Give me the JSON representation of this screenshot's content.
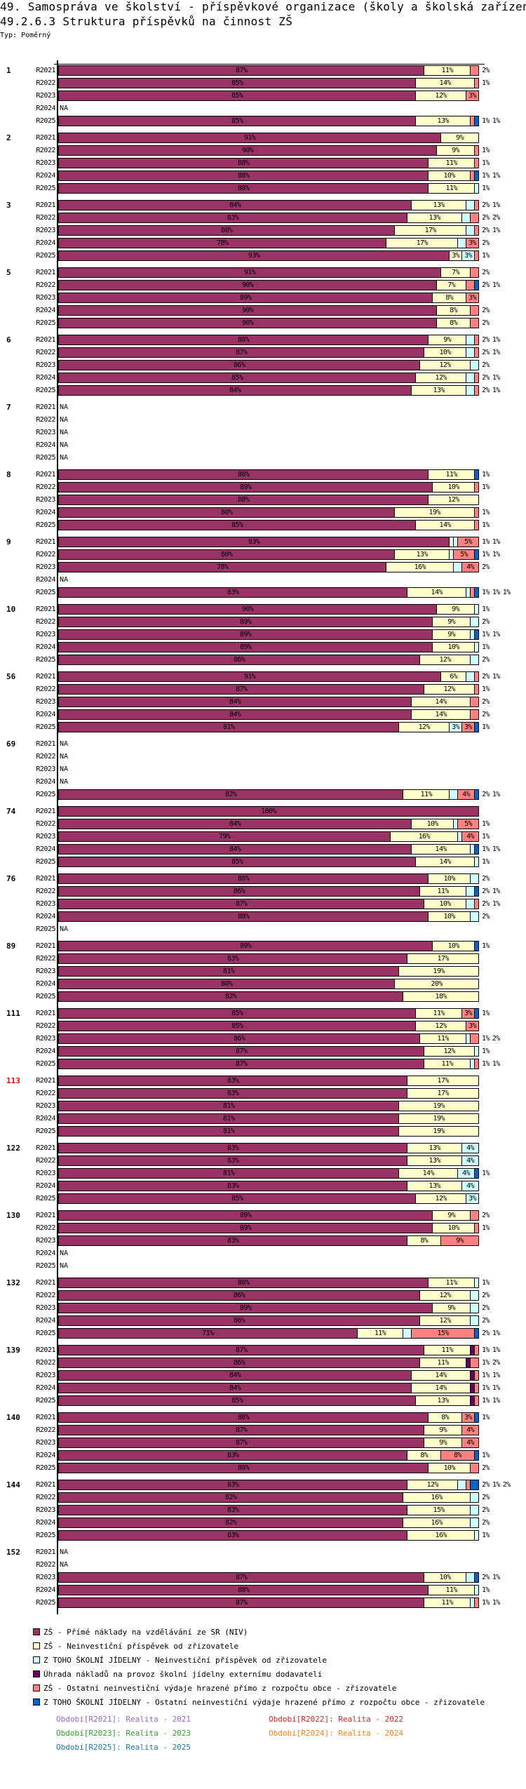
{
  "header": {
    "title": "49. Samospráva ve školství - příspěvkové organizace (školy a školská zařízení)",
    "subtitle": "49.2.6.3 Struktura příspěvků na činnost ZŠ",
    "type_label": "Typ: Poměrný"
  },
  "chart_data": {
    "type": "bar",
    "orientation": "horizontal",
    "stacked": "percent",
    "title": "49.2.6.3 Struktura příspěvků na činnost ZŠ",
    "periods": [
      "R2021",
      "R2022",
      "R2023",
      "R2024",
      "R2025"
    ],
    "na_label": "NA",
    "series": [
      {
        "name": "ZŠ - Přímé náklady na vzdělávání ze SR (NIV)",
        "color": "#993366"
      },
      {
        "name": "ZŠ - Neinvestiční příspěvek od zřizovatele",
        "color": "#ffffcc"
      },
      {
        "name": "Z TOHO ŠKOLNÍ JÍDELNY - Neinvestiční příspěvek od zřizovatele",
        "color": "#ccffff"
      },
      {
        "name": "Úhrada nákladů na provoz školní jídelny externímu dodavateli",
        "color": "#660066"
      },
      {
        "name": "ZŠ - Ostatní neinvestiční výdaje hrazené přímo z rozpočtu obce - zřizovatele",
        "color": "#ff8080"
      },
      {
        "name": "Z TOHO ŠKOLNÍ JÍDELNY - Ostatní neinvestiční výdaje hrazené přímo z rozpočtu obce - zřizovatele",
        "color": "#0066cc"
      }
    ],
    "groups": [
      {
        "label": "1",
        "rows": [
          [
            87,
            11,
            0,
            0,
            2,
            0
          ],
          [
            85,
            14,
            0,
            0,
            1,
            0
          ],
          [
            85,
            12,
            0,
            0,
            3,
            0
          ],
          null,
          [
            85,
            13,
            0,
            0,
            1,
            1
          ]
        ]
      },
      {
        "label": "2",
        "rows": [
          [
            91,
            9,
            0,
            0,
            0,
            0
          ],
          [
            90,
            9,
            0,
            0,
            1,
            0
          ],
          [
            88,
            11,
            0,
            0,
            1,
            0
          ],
          [
            88,
            10,
            0,
            0,
            1,
            1
          ],
          [
            88,
            11,
            1,
            0,
            0,
            0
          ]
        ]
      },
      {
        "label": "3",
        "rows": [
          [
            84,
            13,
            2,
            0,
            1,
            0
          ],
          [
            83,
            13,
            2,
            0,
            2,
            0
          ],
          [
            80,
            17,
            2,
            0,
            1,
            0
          ],
          [
            78,
            17,
            2,
            0,
            3,
            0
          ],
          [
            93,
            3,
            3,
            0,
            1,
            0
          ]
        ]
      },
      {
        "label": "5",
        "rows": [
          [
            91,
            7,
            0,
            0,
            2,
            0
          ],
          [
            90,
            7,
            0,
            0,
            2,
            1
          ],
          [
            89,
            8,
            0,
            0,
            3,
            0
          ],
          [
            90,
            8,
            0,
            0,
            2,
            0
          ],
          [
            90,
            8,
            0,
            0,
            2,
            0
          ]
        ]
      },
      {
        "label": "6",
        "rows": [
          [
            88,
            9,
            2,
            0,
            1,
            0
          ],
          [
            87,
            10,
            2,
            0,
            1,
            0
          ],
          [
            86,
            12,
            2,
            0,
            0,
            0
          ],
          [
            85,
            12,
            2,
            0,
            1,
            0
          ],
          [
            84,
            13,
            2,
            0,
            1,
            0
          ]
        ]
      },
      {
        "label": "7",
        "rows": [
          null,
          null,
          null,
          null,
          null
        ]
      },
      {
        "label": "8",
        "rows": [
          [
            88,
            11,
            0,
            0,
            0,
            1
          ],
          [
            89,
            10,
            0,
            0,
            1,
            0
          ],
          [
            88,
            12,
            0,
            0,
            0,
            0
          ],
          [
            80,
            19,
            0,
            0,
            1,
            0
          ],
          [
            85,
            14,
            0,
            0,
            1,
            0
          ]
        ]
      },
      {
        "label": "9",
        "rows": [
          [
            93,
            1,
            1,
            0,
            5,
            0
          ],
          [
            80,
            13,
            1,
            0,
            5,
            1
          ],
          [
            78,
            16,
            2,
            0,
            4,
            0
          ],
          null,
          [
            83,
            14,
            1,
            0,
            1,
            1
          ]
        ]
      },
      {
        "label": "10",
        "rows": [
          [
            90,
            9,
            1,
            0,
            0,
            0
          ],
          [
            89,
            9,
            2,
            0,
            0,
            0
          ],
          [
            89,
            9,
            1,
            0,
            0,
            1
          ],
          [
            89,
            10,
            1,
            0,
            0,
            0
          ],
          [
            86,
            12,
            2,
            0,
            0,
            0
          ]
        ]
      },
      {
        "label": "56",
        "rows": [
          [
            91,
            6,
            2,
            0,
            1,
            0
          ],
          [
            87,
            12,
            0,
            0,
            1,
            0
          ],
          [
            84,
            14,
            0,
            0,
            2,
            0
          ],
          [
            84,
            14,
            0,
            0,
            2,
            0
          ],
          [
            81,
            12,
            3,
            0,
            3,
            1
          ]
        ]
      },
      {
        "label": "69",
        "rows": [
          null,
          null,
          null,
          null,
          [
            82,
            11,
            2,
            0,
            4,
            1
          ]
        ]
      },
      {
        "label": "74",
        "rows": [
          [
            100,
            0,
            0,
            0,
            0,
            0
          ],
          [
            84,
            10,
            1,
            0,
            5,
            0
          ],
          [
            79,
            16,
            1,
            0,
            4,
            0
          ],
          [
            84,
            14,
            1,
            0,
            0,
            1
          ],
          [
            85,
            14,
            1,
            0,
            0,
            0
          ]
        ]
      },
      {
        "label": "76",
        "rows": [
          [
            88,
            10,
            2,
            0,
            0,
            0
          ],
          [
            86,
            11,
            2,
            0,
            0,
            1
          ],
          [
            87,
            10,
            2,
            0,
            1,
            0
          ],
          [
            88,
            10,
            2,
            0,
            0,
            0
          ],
          null
        ]
      },
      {
        "label": "89",
        "rows": [
          [
            89,
            10,
            0,
            0,
            0,
            1
          ],
          [
            83,
            17,
            0,
            0,
            0,
            0
          ],
          [
            81,
            19,
            0,
            0,
            0,
            0
          ],
          [
            80,
            20,
            0,
            0,
            0,
            0
          ],
          [
            82,
            18,
            0,
            0,
            0,
            0
          ]
        ]
      },
      {
        "label": "111",
        "rows": [
          [
            85,
            11,
            0,
            0,
            3,
            1
          ],
          [
            85,
            12,
            0,
            0,
            3,
            0
          ],
          [
            86,
            11,
            1,
            0,
            2,
            0
          ],
          [
            87,
            12,
            1,
            0,
            0,
            0
          ],
          [
            87,
            11,
            1,
            0,
            1,
            0
          ]
        ]
      },
      {
        "label": "113",
        "highlight": "#ff0000",
        "rows": [
          [
            83,
            17,
            0,
            0,
            0,
            0
          ],
          [
            83,
            17,
            0,
            0,
            0,
            0
          ],
          [
            81,
            19,
            0,
            0,
            0,
            0
          ],
          [
            81,
            19,
            0,
            0,
            0,
            0
          ],
          [
            81,
            19,
            0,
            0,
            0,
            0
          ]
        ]
      },
      {
        "label": "122",
        "rows": [
          [
            83,
            13,
            4,
            0,
            0,
            0
          ],
          [
            83,
            13,
            4,
            0,
            0,
            0
          ],
          [
            81,
            14,
            4,
            0,
            0,
            1
          ],
          [
            83,
            13,
            4,
            0,
            0,
            0
          ],
          [
            85,
            12,
            3,
            0,
            0,
            0
          ]
        ]
      },
      {
        "label": "130",
        "rows": [
          [
            89,
            9,
            0,
            0,
            2,
            0
          ],
          [
            89,
            10,
            0,
            0,
            1,
            0
          ],
          [
            83,
            8,
            0,
            0,
            9,
            0
          ],
          null,
          null
        ]
      },
      {
        "label": "132",
        "rows": [
          [
            88,
            11,
            1,
            0,
            0,
            0
          ],
          [
            86,
            12,
            2,
            0,
            0,
            0
          ],
          [
            89,
            9,
            2,
            0,
            0,
            0
          ],
          [
            86,
            12,
            2,
            0,
            0,
            0
          ],
          [
            71,
            11,
            2,
            0,
            15,
            1
          ]
        ]
      },
      {
        "label": "139",
        "rows": [
          [
            87,
            11,
            0,
            1,
            1,
            0
          ],
          [
            86,
            11,
            0,
            1,
            2,
            0
          ],
          [
            84,
            14,
            0,
            1,
            1,
            0
          ],
          [
            84,
            14,
            0,
            1,
            1,
            0
          ],
          [
            85,
            13,
            0,
            1,
            1,
            0
          ]
        ]
      },
      {
        "label": "140",
        "rows": [
          [
            88,
            8,
            0,
            0,
            3,
            1
          ],
          [
            87,
            9,
            0,
            0,
            4,
            0
          ],
          [
            87,
            9,
            0,
            0,
            4,
            0
          ],
          [
            83,
            8,
            0,
            0,
            8,
            1
          ],
          [
            88,
            10,
            0,
            0,
            2,
            0
          ]
        ]
      },
      {
        "label": "144",
        "rows": [
          [
            83,
            12,
            2,
            0,
            1,
            2
          ],
          [
            82,
            16,
            2,
            0,
            0,
            0
          ],
          [
            83,
            15,
            2,
            0,
            0,
            0
          ],
          [
            82,
            16,
            2,
            0,
            0,
            0
          ],
          [
            83,
            16,
            1,
            0,
            0,
            0
          ]
        ]
      },
      {
        "label": "152",
        "rows": [
          null,
          null,
          [
            87,
            10,
            2,
            0,
            0,
            1
          ],
          [
            88,
            11,
            1,
            0,
            0,
            0
          ],
          [
            87,
            11,
            1,
            0,
            1,
            0
          ]
        ]
      }
    ],
    "period_legend": [
      {
        "text": "Období[R2021]: Realita - 2021",
        "color": "#9966cc"
      },
      {
        "text": "Období[R2022]: Realita - 2022",
        "color": "#e02020"
      },
      {
        "text": "Období[R2023]: Realita - 2023",
        "color": "#2ca02c"
      },
      {
        "text": "Období[R2024]: Realita - 2024",
        "color": "#ff7f0e"
      },
      {
        "text": "Období[R2025]: Realita - 2025",
        "color": "#1f77b4"
      }
    ]
  }
}
